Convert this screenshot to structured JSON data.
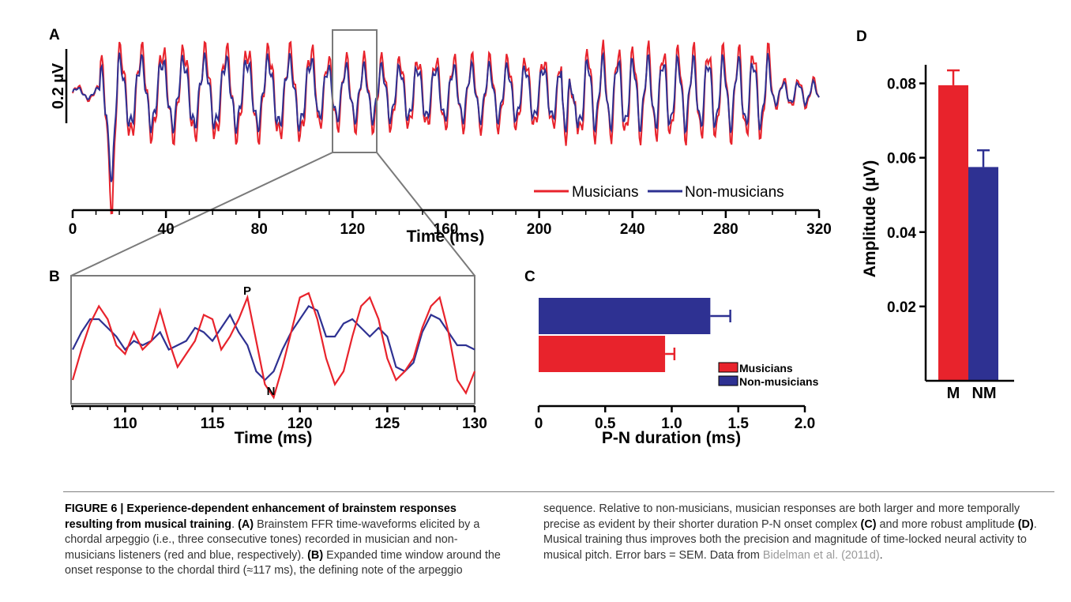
{
  "panel_labels": {
    "a": "A",
    "b": "B",
    "c": "C",
    "d": "D"
  },
  "colors": {
    "musicians": "#e8232c",
    "non_musicians": "#2e3192",
    "box": "#7a7a7a"
  },
  "chart_data": [
    {
      "id": "A",
      "type": "line",
      "title": "",
      "xlabel": "Time (ms)",
      "ylabel": "",
      "xlim": [
        0,
        320
      ],
      "xticks": [
        "0",
        "40",
        "80",
        "120",
        "160",
        "200",
        "240",
        "280",
        "320"
      ],
      "scale_bar_label": "0.2 µV",
      "zoom_window_ms": [
        107,
        130
      ],
      "legend": "bottom-right",
      "series": [
        {
          "name": "Musicians",
          "description_only": false
        },
        {
          "name": "Non-musicians",
          "description_only": false
        }
      ]
    },
    {
      "id": "B",
      "type": "line",
      "xlabel": "Time (ms)",
      "xlim": [
        107,
        130
      ],
      "xticks": [
        "110",
        "115",
        "120",
        "125",
        "130"
      ],
      "peak_labels": [
        "P",
        "N"
      ],
      "series": [
        {
          "name": "Musicians",
          "x": [
            107,
            107.5,
            108,
            108.5,
            109,
            109.5,
            110,
            110.5,
            111,
            111.5,
            112,
            112.5,
            113,
            113.5,
            114,
            114.5,
            115,
            115.5,
            116,
            116.5,
            117,
            117.5,
            118,
            118.5,
            119,
            119.5,
            120,
            120.5,
            121,
            121.5,
            122,
            122.5,
            123,
            123.5,
            124,
            124.5,
            125,
            125.5,
            126,
            126.5,
            127,
            127.5,
            128,
            128.5,
            129,
            129.5,
            130
          ],
          "y": [
            -0.8,
            -0.1,
            0.5,
            0.9,
            0.6,
            0.0,
            -0.2,
            0.3,
            -0.1,
            0.1,
            0.8,
            0.1,
            -0.5,
            -0.2,
            0.1,
            0.7,
            0.6,
            -0.1,
            0.2,
            0.6,
            1.1,
            0.1,
            -0.9,
            -1.2,
            -0.5,
            0.3,
            1.1,
            1.2,
            0.6,
            -0.3,
            -0.9,
            -0.6,
            0.2,
            0.9,
            1.1,
            0.6,
            -0.3,
            -0.8,
            -0.6,
            -0.3,
            0.4,
            0.9,
            1.1,
            0.3,
            -0.8,
            -1.1,
            -0.6
          ]
        },
        {
          "name": "Non-musicians",
          "x": [
            107,
            107.5,
            108,
            108.5,
            109,
            109.5,
            110,
            110.5,
            111,
            111.5,
            112,
            112.5,
            113,
            113.5,
            114,
            114.5,
            115,
            115.5,
            116,
            116.5,
            117,
            117.5,
            118,
            118.5,
            119,
            119.5,
            120,
            120.5,
            121,
            121.5,
            122,
            122.5,
            123,
            123.5,
            124,
            124.5,
            125,
            125.5,
            126,
            126.5,
            127,
            127.5,
            128,
            128.5,
            129,
            129.5,
            130
          ],
          "y": [
            -0.1,
            0.3,
            0.6,
            0.6,
            0.4,
            0.2,
            -0.1,
            0.1,
            0.0,
            0.1,
            0.3,
            -0.1,
            0.0,
            0.1,
            0.4,
            0.3,
            0.1,
            0.4,
            0.7,
            0.3,
            0.0,
            -0.6,
            -0.8,
            -0.6,
            -0.1,
            0.3,
            0.6,
            0.9,
            0.8,
            0.2,
            0.2,
            0.5,
            0.6,
            0.4,
            0.2,
            0.4,
            0.2,
            -0.5,
            -0.6,
            -0.4,
            0.3,
            0.7,
            0.6,
            0.3,
            0.0,
            0.0,
            -0.1
          ]
        }
      ]
    },
    {
      "id": "C",
      "type": "bar",
      "orientation": "horizontal",
      "xlabel": "P-N duration (ms)",
      "xlim": [
        0,
        2.0
      ],
      "xticks": [
        "0",
        "0.5",
        "1.0",
        "1.5",
        "2.0"
      ],
      "legend": "bottom-right",
      "series": [
        {
          "name": "Non-musicians",
          "value": 1.29,
          "error": 0.15
        },
        {
          "name": "Musicians",
          "value": 0.95,
          "error": 0.07
        }
      ]
    },
    {
      "id": "D",
      "type": "bar",
      "categories": [
        "M",
        "NM"
      ],
      "values": [
        0.0795,
        0.0575
      ],
      "errors": [
        0.004,
        0.0045
      ],
      "ylabel": "Amplitude (µV)",
      "ylim": [
        0.0,
        0.085
      ],
      "yticks": [
        "0.02",
        "0.04",
        "0.06",
        "0.08"
      ]
    }
  ],
  "caption": {
    "figure_label": "FIGURE 6 | Experience-dependent enhancement of brainstem responses resulting from musical training",
    "sep": ". ",
    "a_tag": "(A)",
    "a_text": " Brainstem FFR time-waveforms elicited by a chordal arpeggio (i.e., three consecutive tones) recorded in musician and non-musicians listeners (red and blue, respectively). ",
    "b_tag": "(B)",
    "b_text": " Expanded time window around the onset response to the chordal third (≈117 ms), the defining note of the arpeggio ",
    "right_1": "sequence. Relative to non-musicians, musician responses are both larger and more temporally precise as evident by their shorter duration P-N onset complex ",
    "c_tag": "(C)",
    "right_2": " and more robust amplitude ",
    "d_tag": "(D)",
    "right_3": ". Musical training thus improves both the precision and magnitude of time-locked neural activity to musical pitch. Error bars = SEM. Data from ",
    "ref": "Bidelman et al. (2011d)",
    "end": "."
  }
}
